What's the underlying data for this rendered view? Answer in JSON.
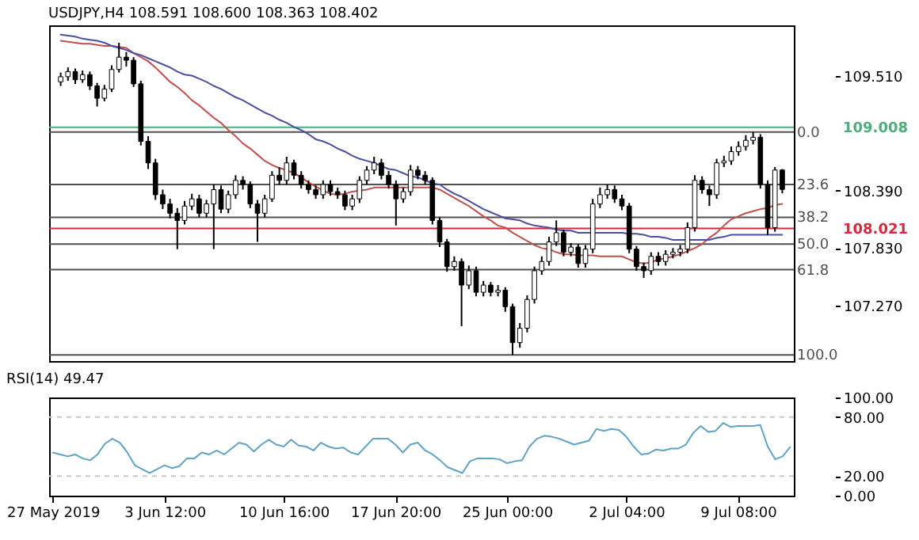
{
  "chart_data": [
    {
      "type": "candlestick",
      "title": "USDJPY,H4  108.591 108.600 108.363 108.402",
      "categories": [
        null,
        null,
        null,
        null,
        null,
        null,
        null,
        null,
        null,
        null,
        null,
        null,
        null,
        null,
        null,
        null,
        null,
        null,
        null,
        null,
        null,
        null,
        null,
        null,
        null,
        null,
        null,
        null,
        null,
        null,
        null,
        null,
        null,
        null,
        null,
        null,
        null,
        null,
        null,
        null,
        null,
        null,
        null,
        null,
        null,
        null,
        null,
        null,
        null,
        null,
        null,
        null,
        null,
        null,
        null,
        null,
        null,
        null,
        null,
        null,
        null,
        null,
        null,
        null,
        null,
        null,
        null,
        null,
        null,
        null,
        null,
        null,
        null,
        null,
        null,
        null,
        null,
        null,
        null,
        null,
        null,
        null,
        null,
        null,
        null,
        null,
        null,
        null,
        null,
        null,
        null,
        null,
        null,
        null,
        null,
        null,
        null,
        null,
        null,
        null
      ],
      "ohlc": [
        [
          109.45,
          109.54,
          109.41,
          109.5
        ],
        [
          109.5,
          109.59,
          109.46,
          109.55
        ],
        [
          109.55,
          109.58,
          109.43,
          109.47
        ],
        [
          109.47,
          109.56,
          109.44,
          109.52
        ],
        [
          109.52,
          109.55,
          109.37,
          109.41
        ],
        [
          109.41,
          109.44,
          109.21,
          109.29
        ],
        [
          109.29,
          109.42,
          109.26,
          109.38
        ],
        [
          109.38,
          109.61,
          109.35,
          109.57
        ],
        [
          109.57,
          109.83,
          109.54,
          109.69
        ],
        [
          109.69,
          109.74,
          109.6,
          109.66
        ],
        [
          109.66,
          109.69,
          109.4,
          109.43
        ],
        [
          109.43,
          109.46,
          108.83,
          108.87
        ],
        [
          108.87,
          108.92,
          108.6,
          108.66
        ],
        [
          108.66,
          108.7,
          108.3,
          108.35
        ],
        [
          108.35,
          108.4,
          108.21,
          108.26
        ],
        [
          108.26,
          108.31,
          108.12,
          108.17
        ],
        [
          108.17,
          108.22,
          107.82,
          108.1
        ],
        [
          108.1,
          108.29,
          108.06,
          108.24
        ],
        [
          108.24,
          108.36,
          108.2,
          108.31
        ],
        [
          108.31,
          108.35,
          108.13,
          108.17
        ],
        [
          108.17,
          108.3,
          108.13,
          108.26
        ],
        [
          108.26,
          108.45,
          107.82,
          108.4
        ],
        [
          108.4,
          108.44,
          108.17,
          108.21
        ],
        [
          108.21,
          108.39,
          108.17,
          108.35
        ],
        [
          108.35,
          108.54,
          108.31,
          108.49
        ],
        [
          108.49,
          108.53,
          108.4,
          108.45
        ],
        [
          108.45,
          108.48,
          108.22,
          108.26
        ],
        [
          108.26,
          108.3,
          107.89,
          108.17
        ],
        [
          108.17,
          108.35,
          108.13,
          108.31
        ],
        [
          108.31,
          108.58,
          108.28,
          108.54
        ],
        [
          108.54,
          108.62,
          108.45,
          108.49
        ],
        [
          108.49,
          108.72,
          108.45,
          108.66
        ],
        [
          108.66,
          108.69,
          108.5,
          108.54
        ],
        [
          108.54,
          108.58,
          108.41,
          108.45
        ],
        [
          108.45,
          108.49,
          108.36,
          108.4
        ],
        [
          108.4,
          108.44,
          108.31,
          108.35
        ],
        [
          108.35,
          108.49,
          108.31,
          108.45
        ],
        [
          108.45,
          108.49,
          108.34,
          108.38
        ],
        [
          108.38,
          108.42,
          108.31,
          108.35
        ],
        [
          108.35,
          108.39,
          108.2,
          108.24
        ],
        [
          108.24,
          108.35,
          108.2,
          108.31
        ],
        [
          108.31,
          108.53,
          108.27,
          108.49
        ],
        [
          108.49,
          108.63,
          108.45,
          108.59
        ],
        [
          108.59,
          108.72,
          108.55,
          108.66
        ],
        [
          108.66,
          108.7,
          108.5,
          108.54
        ],
        [
          108.54,
          108.58,
          108.41,
          108.45
        ],
        [
          108.45,
          108.49,
          108.05,
          108.31
        ],
        [
          108.31,
          108.42,
          108.27,
          108.38
        ],
        [
          108.38,
          108.64,
          108.34,
          108.59
        ],
        [
          108.59,
          108.63,
          108.5,
          108.54
        ],
        [
          108.54,
          108.58,
          108.45,
          108.49
        ],
        [
          108.49,
          108.52,
          108.06,
          108.1
        ],
        [
          108.1,
          108.13,
          107.84,
          107.89
        ],
        [
          107.89,
          107.92,
          107.6,
          107.65
        ],
        [
          107.65,
          107.75,
          107.61,
          107.7
        ],
        [
          107.7,
          107.73,
          107.07,
          107.47
        ],
        [
          107.47,
          107.66,
          107.43,
          107.61
        ],
        [
          107.61,
          107.65,
          107.36,
          107.4
        ],
        [
          107.4,
          107.51,
          107.36,
          107.47
        ],
        [
          107.47,
          107.5,
          107.36,
          107.4
        ],
        [
          107.4,
          107.47,
          107.36,
          107.42
        ],
        [
          107.42,
          107.45,
          107.21,
          107.26
        ],
        [
          107.26,
          107.29,
          106.79,
          106.91
        ],
        [
          106.91,
          107.1,
          106.86,
          107.05
        ],
        [
          107.05,
          107.37,
          107.01,
          107.33
        ],
        [
          107.33,
          107.65,
          107.29,
          107.61
        ],
        [
          107.61,
          107.75,
          107.57,
          107.7
        ],
        [
          107.7,
          107.94,
          107.66,
          107.89
        ],
        [
          107.89,
          108.1,
          107.85,
          107.98
        ],
        [
          107.98,
          108.01,
          107.75,
          107.79
        ],
        [
          107.79,
          107.88,
          107.75,
          107.84
        ],
        [
          107.84,
          107.87,
          107.64,
          107.68
        ],
        [
          107.68,
          107.86,
          107.64,
          107.82
        ],
        [
          107.82,
          108.31,
          107.78,
          108.26
        ],
        [
          108.26,
          108.42,
          108.22,
          108.35
        ],
        [
          108.35,
          108.45,
          108.31,
          108.4
        ],
        [
          108.4,
          108.44,
          108.27,
          108.31
        ],
        [
          108.31,
          108.35,
          108.2,
          108.24
        ],
        [
          108.24,
          108.27,
          107.78,
          107.82
        ],
        [
          107.82,
          107.85,
          107.61,
          107.65
        ],
        [
          107.65,
          107.69,
          107.54,
          107.61
        ],
        [
          107.61,
          107.79,
          107.57,
          107.75
        ],
        [
          107.75,
          107.79,
          107.66,
          107.7
        ],
        [
          107.7,
          107.81,
          107.66,
          107.77
        ],
        [
          107.77,
          107.83,
          107.73,
          107.79
        ],
        [
          107.79,
          107.86,
          107.75,
          107.82
        ],
        [
          107.82,
          108.08,
          107.78,
          108.03
        ],
        [
          108.03,
          108.54,
          107.99,
          108.49
        ],
        [
          108.49,
          108.53,
          108.36,
          108.4
        ],
        [
          108.4,
          108.44,
          108.24,
          108.35
        ],
        [
          108.35,
          108.7,
          108.31,
          108.66
        ],
        [
          108.66,
          108.73,
          108.62,
          108.68
        ],
        [
          108.68,
          108.82,
          108.64,
          108.77
        ],
        [
          108.77,
          108.87,
          108.73,
          108.82
        ],
        [
          108.82,
          108.93,
          108.78,
          108.88
        ],
        [
          108.88,
          108.96,
          108.84,
          108.91
        ],
        [
          108.91,
          108.94,
          108.41,
          108.45
        ],
        [
          108.45,
          108.49,
          107.96,
          108.03
        ],
        [
          108.03,
          108.62,
          107.99,
          108.59
        ],
        [
          108.591,
          108.6,
          108.363,
          108.402
        ]
      ],
      "series": [
        {
          "type": "line",
          "color": "#c0504d",
          "values": [
            109.85,
            109.84,
            109.83,
            109.82,
            109.82,
            109.81,
            109.8,
            109.8,
            109.79,
            109.78,
            109.73,
            109.69,
            109.65,
            109.59,
            109.52,
            109.45,
            109.4,
            109.34,
            109.27,
            109.22,
            109.16,
            109.1,
            109.05,
            108.98,
            108.92,
            108.85,
            108.8,
            108.74,
            108.68,
            108.64,
            108.61,
            108.59,
            108.56,
            108.52,
            108.47,
            108.43,
            108.39,
            108.36,
            108.35,
            108.36,
            108.38,
            108.39,
            108.4,
            108.42,
            108.42,
            108.42,
            108.42,
            108.42,
            108.42,
            108.42,
            108.42,
            108.42,
            108.4,
            108.36,
            108.32,
            108.28,
            108.24,
            108.19,
            108.14,
            108.1,
            108.05,
            108.03,
            107.98,
            107.94,
            107.9,
            107.86,
            107.83,
            107.82,
            107.79,
            107.77,
            107.77,
            107.76,
            107.76,
            107.76,
            107.75,
            107.75,
            107.75,
            107.75,
            107.72,
            107.69,
            107.68,
            107.69,
            107.72,
            107.73,
            107.75,
            107.77,
            107.8,
            107.83,
            107.87,
            107.93,
            107.98,
            108.05,
            108.11,
            108.14,
            108.17,
            108.19,
            108.21,
            108.22,
            108.25,
            108.26
          ]
        },
        {
          "type": "line",
          "color": "#4b4ea0",
          "values": [
            109.91,
            109.9,
            109.89,
            109.87,
            109.86,
            109.85,
            109.83,
            109.8,
            109.78,
            109.76,
            109.73,
            109.71,
            109.68,
            109.65,
            109.62,
            109.59,
            109.55,
            109.52,
            109.51,
            109.48,
            109.45,
            109.41,
            109.38,
            109.34,
            109.3,
            109.27,
            109.23,
            109.19,
            109.15,
            109.12,
            109.08,
            109.05,
            109.01,
            108.98,
            108.94,
            108.89,
            108.87,
            108.84,
            108.8,
            108.77,
            108.73,
            108.7,
            108.68,
            108.66,
            108.63,
            108.6,
            108.59,
            108.56,
            108.53,
            108.52,
            108.49,
            108.46,
            108.45,
            108.4,
            108.36,
            108.33,
            108.29,
            108.25,
            108.21,
            108.18,
            108.15,
            108.12,
            108.11,
            108.1,
            108.07,
            108.05,
            108.04,
            108.03,
            108.01,
            108.0,
            108.0,
            107.98,
            107.98,
            107.98,
            107.98,
            107.98,
            107.98,
            107.98,
            107.97,
            107.97,
            107.96,
            107.94,
            107.94,
            107.93,
            107.91,
            107.91,
            107.91,
            107.91,
            107.91,
            107.91,
            107.93,
            107.94,
            107.96,
            107.96,
            107.96,
            107.96,
            107.96,
            107.96,
            107.96,
            107.96
          ]
        }
      ],
      "ylim": [
        106.73,
        110.0
      ],
      "yticks": [
        {
          "value": 109.51,
          "label": "109.510"
        },
        {
          "value": 108.39,
          "label": "108.390"
        },
        {
          "value": 107.83,
          "label": "107.830"
        },
        {
          "value": 107.27,
          "label": "107.270"
        }
      ],
      "ref_lines": [
        {
          "axis": "y",
          "value": 108.96
        },
        {
          "axis": "y",
          "value": 108.45
        },
        {
          "axis": "y",
          "value": 108.13
        },
        {
          "axis": "y",
          "value": 107.87
        },
        {
          "axis": "y",
          "value": 107.62
        },
        {
          "axis": "y",
          "value": 106.79
        },
        {
          "axis": "y",
          "value": 109.008,
          "label": "109.008",
          "color": "#4caf7d"
        },
        {
          "axis": "y",
          "value": 108.021,
          "label": "108.021",
          "color": "#d42a3f"
        }
      ],
      "annotations": [
        "0.0",
        "23.6",
        "38.2",
        "50.0",
        "61.8",
        "100.0"
      ],
      "tick_labels": "y"
    },
    {
      "type": "line",
      "title": "RSI(14) 49.47",
      "categories": [
        "27 May 2019",
        null,
        null,
        null,
        null,
        null,
        null,
        null,
        null,
        null,
        null,
        null,
        null,
        null,
        null,
        "3 Jun 12:00",
        null,
        null,
        null,
        null,
        null,
        null,
        null,
        null,
        null,
        null,
        null,
        null,
        null,
        null,
        null,
        "10 Jun 16:00",
        null,
        null,
        null,
        null,
        null,
        null,
        null,
        null,
        null,
        null,
        null,
        null,
        null,
        null,
        "17 Jun 20:00",
        null,
        null,
        null,
        null,
        null,
        null,
        null,
        null,
        null,
        null,
        null,
        null,
        null,
        null,
        "25 Jun 00:00",
        null,
        null,
        null,
        null,
        null,
        null,
        null,
        null,
        null,
        null,
        null,
        null,
        null,
        null,
        null,
        "2 Jul 04:00",
        null,
        null,
        null,
        null,
        null,
        null,
        null,
        null,
        null,
        null,
        null,
        null,
        null,
        null,
        "9 Jul 08:00",
        null,
        null,
        null,
        null,
        null,
        null,
        null
      ],
      "series": [
        {
          "color": "#5fa3c5",
          "values": [
            44,
            42,
            40,
            42,
            38,
            36,
            42,
            53,
            58,
            54,
            44,
            31,
            27,
            23,
            27,
            31,
            28,
            30,
            38,
            38,
            44,
            42,
            46,
            42,
            48,
            54,
            52,
            45,
            52,
            57,
            52,
            50,
            57,
            51,
            50,
            46,
            54,
            50,
            48,
            49,
            44,
            42,
            50,
            58,
            58,
            58,
            52,
            44,
            52,
            54,
            46,
            42,
            36,
            29,
            26,
            23,
            35,
            38,
            38,
            38,
            37,
            33,
            35,
            36,
            50,
            58,
            61,
            60,
            58,
            55,
            52,
            54,
            56,
            68,
            66,
            68,
            67,
            60,
            50,
            42,
            43,
            47,
            46,
            48,
            48,
            52,
            64,
            71,
            65,
            66,
            74,
            70,
            71,
            71,
            71,
            72,
            50,
            37,
            40,
            49.47
          ]
        }
      ],
      "ylim": [
        0,
        100
      ],
      "yticks": [
        {
          "value": 100,
          "label": "100.00"
        },
        {
          "value": 80,
          "label": "80.00"
        },
        {
          "value": 20,
          "label": "20.00"
        },
        {
          "value": 0,
          "label": "0.00"
        }
      ],
      "ref_lines": [
        {
          "axis": "y",
          "value": 80,
          "color": "#c8c8c8",
          "line_style": "dashed"
        },
        {
          "axis": "y",
          "value": 20,
          "color": "#c8c8c8",
          "line_style": "dashed"
        }
      ]
    }
  ]
}
